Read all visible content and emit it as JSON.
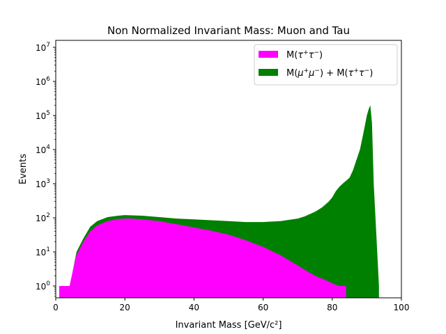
{
  "chart_data": {
    "type": "area",
    "title": "Non Normalized Invariant Mass: Muon and Tau",
    "xlabel": "Invariant Mass [GeV/c²]",
    "ylabel": "Events",
    "xlim": [
      0,
      100
    ],
    "ylim": [
      0.45,
      16000000
    ],
    "yscale": "log",
    "grid": false,
    "legend_placement": "top-right",
    "x_ticks": [
      "0",
      "20",
      "40",
      "60",
      "80",
      "100"
    ],
    "y_ticks": [
      {
        "base": "10",
        "exp": "0",
        "value": 1
      },
      {
        "base": "10",
        "exp": "1",
        "value": 10
      },
      {
        "base": "10",
        "exp": "2",
        "value": 100
      },
      {
        "base": "10",
        "exp": "3",
        "value": 1000
      },
      {
        "base": "10",
        "exp": "4",
        "value": 10000
      },
      {
        "base": "10",
        "exp": "5",
        "value": 100000
      },
      {
        "base": "10",
        "exp": "6",
        "value": 1000000
      },
      {
        "base": "10",
        "exp": "7",
        "value": 10000000
      }
    ],
    "series": [
      {
        "name": "M(τ⁺τ⁻) ",
        "color": "#ff00ff",
        "x": [
          1,
          2,
          3,
          4,
          5,
          6,
          8,
          10,
          12,
          15,
          18,
          20,
          22,
          25,
          30,
          35,
          40,
          45,
          50,
          55,
          60,
          65,
          70,
          72,
          75,
          78,
          80,
          82,
          84
        ],
        "values": [
          1,
          1,
          1,
          1,
          3,
          8,
          20,
          40,
          60,
          80,
          92,
          95,
          95,
          90,
          80,
          65,
          52,
          42,
          32,
          22,
          14,
          8,
          4,
          3,
          2,
          1.5,
          1.2,
          1,
          1
        ]
      },
      {
        "name": "M(μ⁺μ⁻) + M(τ⁺τ⁻)",
        "color": "#008000",
        "x": [
          5,
          6,
          8,
          10,
          12,
          15,
          18,
          20,
          25,
          30,
          35,
          40,
          45,
          50,
          55,
          60,
          65,
          70,
          72,
          75,
          77,
          79,
          80,
          81,
          82,
          83,
          85,
          86,
          87,
          88,
          89,
          90,
          90.5,
          91,
          91.5,
          92,
          92.5,
          93,
          93.5
        ],
        "values": [
          3,
          10,
          25,
          55,
          80,
          105,
          115,
          120,
          115,
          105,
          95,
          90,
          85,
          80,
          75,
          75,
          80,
          95,
          110,
          150,
          200,
          300,
          400,
          600,
          800,
          1000,
          1500,
          2500,
          5000,
          10000,
          30000,
          100000,
          150000,
          200000,
          60000,
          1000,
          100,
          10,
          1
        ]
      }
    ],
    "legend": [
      {
        "label_pre": "M(",
        "sym1": "τ",
        "sym2": "τ",
        "label_post": ")",
        "plus": "",
        "label_pre2": "",
        "sym3": "",
        "sym4": "",
        "label_post2": ""
      },
      {
        "label_pre": "M(",
        "sym1": "μ",
        "sym2": "μ",
        "label_post": ")",
        "plus": " + ",
        "label_pre2": "M(",
        "sym3": "τ",
        "sym4": "τ",
        "label_post2": ")"
      }
    ]
  }
}
